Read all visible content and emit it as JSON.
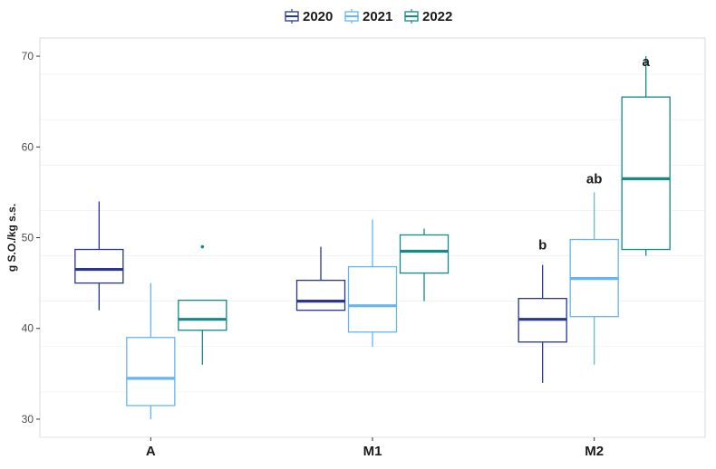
{
  "chart_data": {
    "type": "boxplot",
    "title": "",
    "xlabel": "",
    "ylabel": "g S.O./kg s.s.",
    "ylim": [
      28,
      72
    ],
    "yticks": [
      30,
      40,
      50,
      60,
      70
    ],
    "grid": true,
    "legend_position": "top",
    "categories": [
      "A",
      "M1",
      "M2"
    ],
    "series": [
      {
        "name": "2020",
        "color": "#283593",
        "boxes": [
          {
            "whisker_low": 42,
            "q1": 45,
            "median": 46.5,
            "q3": 48.7,
            "whisker_high": 54,
            "outliers": []
          },
          {
            "whisker_low": 42,
            "q1": 42,
            "median": 43,
            "q3": 45.3,
            "whisker_high": 49,
            "outliers": []
          },
          {
            "whisker_low": 34,
            "q1": 38.5,
            "median": 41,
            "q3": 43.3,
            "whisker_high": 47,
            "outliers": []
          }
        ]
      },
      {
        "name": "2021",
        "color": "#64b5f6",
        "boxes": [
          {
            "whisker_low": 30,
            "q1": 31.5,
            "median": 34.5,
            "q3": 39,
            "whisker_high": 45,
            "outliers": []
          },
          {
            "whisker_low": 38,
            "q1": 39.6,
            "median": 42.5,
            "q3": 46.8,
            "whisker_high": 52,
            "outliers": []
          },
          {
            "whisker_low": 36,
            "q1": 41.3,
            "median": 45.5,
            "q3": 49.8,
            "whisker_high": 55,
            "outliers": []
          }
        ]
      },
      {
        "name": "2022",
        "color": "#14898a",
        "boxes": [
          {
            "whisker_low": 36,
            "q1": 39.8,
            "median": 41,
            "q3": 43.1,
            "whisker_high": 43.1,
            "outliers": [
              49
            ]
          },
          {
            "whisker_low": 43,
            "q1": 46.1,
            "median": 48.5,
            "q3": 50.3,
            "whisker_high": 51,
            "outliers": []
          },
          {
            "whisker_low": 48,
            "q1": 48.7,
            "median": 56.5,
            "q3": 65.5,
            "whisker_high": 70,
            "outliers": []
          }
        ]
      }
    ],
    "annotations": [
      {
        "text": "b",
        "category": "M2",
        "series": "2020",
        "y": 49.2
      },
      {
        "text": "ab",
        "category": "M2",
        "series": "2021",
        "y": 56.5
      },
      {
        "text": "a",
        "category": "M2",
        "series": "2022",
        "y": 69.4
      }
    ]
  }
}
